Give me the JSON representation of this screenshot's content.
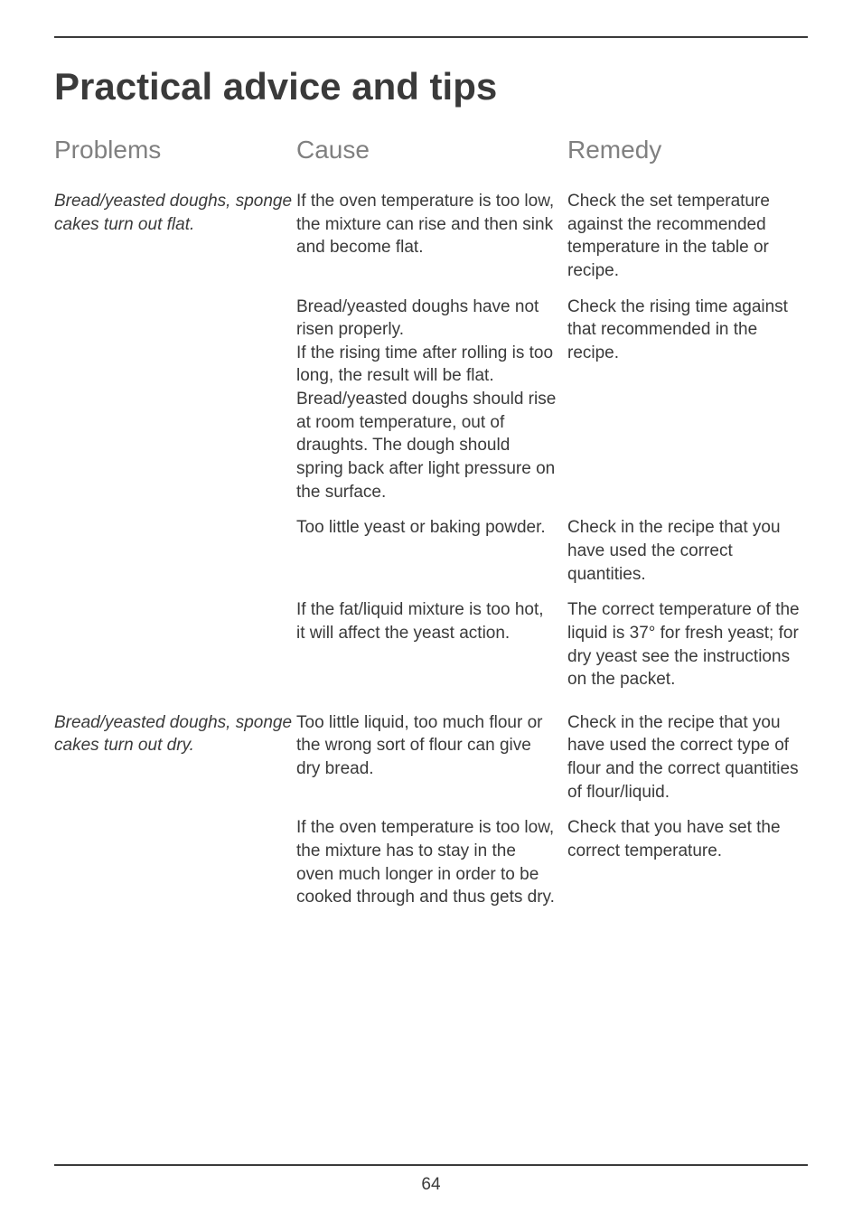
{
  "page": {
    "title": "Practical advice and tips",
    "number": "64",
    "rule_color": "#3a3a3a",
    "bg_color": "#ffffff",
    "text_color": "#3a3a3a",
    "header_color": "#808080",
    "title_fontsize": 42,
    "header_fontsize": 28,
    "body_fontsize": 19
  },
  "headers": {
    "problems": "Problems",
    "cause": "Cause",
    "remedy": "Remedy"
  },
  "groups": [
    {
      "problem": "Bread/yeasted doughs, sponge cakes turn out flat.",
      "pairs": [
        {
          "cause": "If the oven temperature is too low, the mixture can rise and then sink and become flat.",
          "remedy": "Check the set temperature against the recommended temperature in the table or recipe."
        },
        {
          "cause": "Bread/yeasted doughs have not risen properly.\nIf the rising time after rolling is too long, the result will be flat. Bread/yeasted doughs should rise at room temperature, out of draughts. The dough should spring back after light pressure on the surface.",
          "remedy": "Check the rising time against that recommended in the recipe."
        },
        {
          "cause": "Too little yeast or baking powder.",
          "remedy": "Check in the recipe that you have used the correct quantities."
        },
        {
          "cause": "If the fat/liquid mixture is too hot, it will affect the yeast action.",
          "remedy": "The correct temperature of the liquid is 37° for fresh yeast; for dry yeast see the instructions on the packet."
        }
      ]
    },
    {
      "problem": "Bread/yeasted doughs, sponge cakes turn out dry.",
      "pairs": [
        {
          "cause": "Too little liquid, too much flour or the wrong sort of flour can give dry bread.",
          "remedy": "Check in the recipe that you have used the correct type of flour and the correct quantities of flour/liquid."
        },
        {
          "cause": "If the oven temperature is too low, the mixture has to stay in the oven much longer in order to be cooked through and thus gets dry.",
          "remedy": "Check that you have set the correct temperature."
        }
      ]
    }
  ]
}
